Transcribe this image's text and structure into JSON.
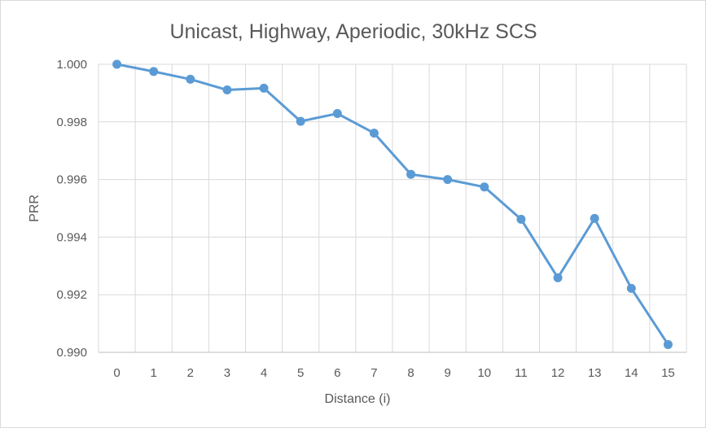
{
  "chart_data": {
    "type": "line",
    "title": "Unicast, Highway, Aperiodic, 30kHz SCS",
    "xlabel": "Distance (i)",
    "ylabel": "PRR",
    "x": [
      "0",
      "1",
      "2",
      "3",
      "4",
      "5",
      "6",
      "7",
      "8",
      "9",
      "10",
      "11",
      "12",
      "13",
      "14",
      "15"
    ],
    "series": [
      {
        "values": [
          1.0,
          0.99975,
          0.99948,
          0.99911,
          0.99917,
          0.99802,
          0.99829,
          0.99761,
          0.99618,
          0.996,
          0.99574,
          0.99462,
          0.99259,
          0.99465,
          0.99222,
          0.99027
        ],
        "color": "#5b9bd5"
      }
    ],
    "ylim": [
      0.99,
      1.0
    ],
    "yticks": [
      "0.990",
      "0.992",
      "0.994",
      "0.996",
      "0.998",
      "1.000"
    ],
    "grid": {
      "horizontal": true,
      "vertical": true
    },
    "colors": {
      "gridline": "#d9d9d9",
      "text": "#595959",
      "axis": "#bfbfbf"
    }
  }
}
